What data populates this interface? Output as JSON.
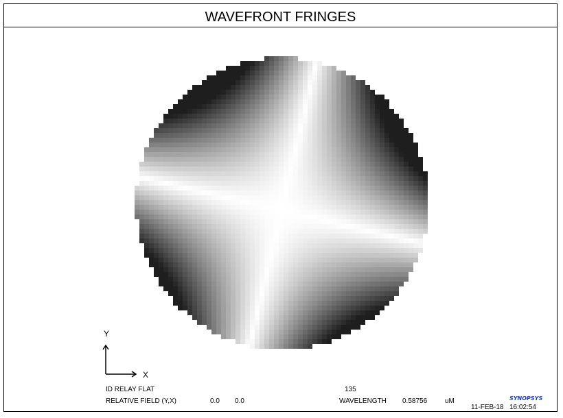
{
  "title": "WAVEFRONT FRINGES",
  "axes": {
    "y_label": "Y",
    "x_label": "X"
  },
  "footer": {
    "lens_name": "ID RELAY FLAT",
    "surface_number": "135",
    "field_label": "RELATIVE FIELD (Y,X)",
    "field_y": "0.0",
    "field_x": "0.0",
    "wavelength_label": "WAVELENGTH",
    "wavelength_value": "0.58756",
    "wavelength_unit": "uM",
    "logo": "SYNOPSYS",
    "date": "11-FEB-18",
    "time": "16:02:54"
  },
  "colors": {
    "fringe_dark": "#1e1e1e",
    "fringe_light": "#ffffff",
    "logo": "#1f3fbf"
  }
}
